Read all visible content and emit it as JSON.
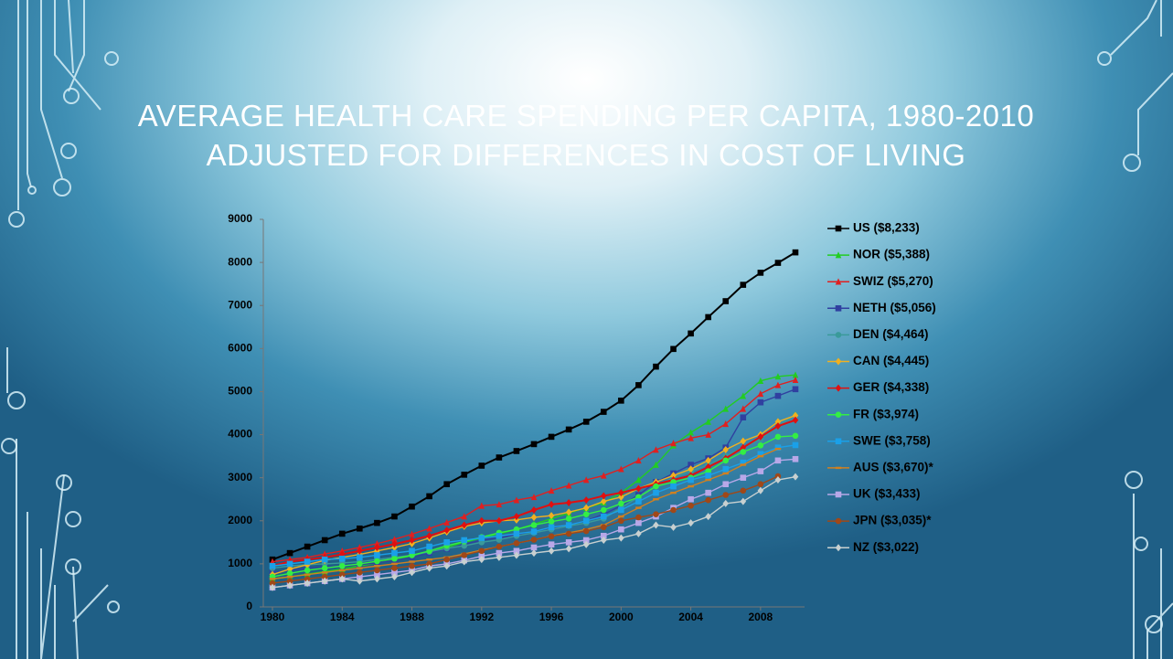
{
  "chart_data": {
    "type": "line",
    "title": "AVERAGE HEALTH CARE SPENDING PER CAPITA, 1980-2010",
    "subtitle": "ADJUSTED FOR DIFFERENCES IN COST OF LIVING",
    "x": [
      1980,
      1981,
      1982,
      1983,
      1984,
      1985,
      1986,
      1987,
      1988,
      1989,
      1990,
      1991,
      1992,
      1993,
      1994,
      1995,
      1996,
      1997,
      1998,
      1999,
      2000,
      2001,
      2002,
      2003,
      2004,
      2005,
      2006,
      2007,
      2008,
      2009,
      2010
    ],
    "xlim": [
      1980,
      2010
    ],
    "xticks": [
      1980,
      1984,
      1988,
      1992,
      1996,
      2000,
      2004,
      2008
    ],
    "ylim": [
      0,
      9000
    ],
    "yticks": [
      0,
      1000,
      2000,
      3000,
      4000,
      5000,
      6000,
      7000,
      8000,
      9000
    ],
    "legend": "right",
    "series": [
      {
        "name": "US ($8,233)",
        "color": "#000000",
        "marker": "square",
        "values": [
          1100,
          1250,
          1400,
          1550,
          1700,
          1820,
          1950,
          2100,
          2330,
          2570,
          2850,
          3070,
          3280,
          3470,
          3620,
          3780,
          3950,
          4120,
          4300,
          4530,
          4790,
          5150,
          5580,
          5990,
          6350,
          6730,
          7100,
          7480,
          7760,
          7990,
          8233
        ]
      },
      {
        "name": "NOR ($5,388)",
        "color": "#22cc22",
        "marker": "triangle",
        "values": [
          650,
          700,
          760,
          820,
          880,
          950,
          1020,
          1090,
          1180,
          1300,
          1380,
          1500,
          1600,
          1700,
          1800,
          1920,
          2050,
          2180,
          2300,
          2420,
          2650,
          2950,
          3300,
          3750,
          4050,
          4300,
          4600,
          4900,
          5250,
          5350,
          5388
        ]
      },
      {
        "name": "SWIZ ($5,270)",
        "color": "#e02020",
        "marker": "triangle",
        "values": [
          1050,
          1100,
          1150,
          1230,
          1300,
          1380,
          1470,
          1570,
          1690,
          1820,
          1960,
          2100,
          2350,
          2380,
          2480,
          2550,
          2700,
          2820,
          2950,
          3050,
          3200,
          3400,
          3650,
          3800,
          3920,
          4000,
          4250,
          4600,
          4950,
          5150,
          5270
        ]
      },
      {
        "name": "NETH ($5,056)",
        "color": "#3040a0",
        "marker": "square",
        "values": [
          800,
          850,
          900,
          930,
          950,
          980,
          1020,
          1080,
          1150,
          1250,
          1350,
          1450,
          1550,
          1600,
          1680,
          1760,
          1830,
          1900,
          2000,
          2150,
          2350,
          2600,
          2900,
          3100,
          3300,
          3450,
          3700,
          4400,
          4750,
          4900,
          5056
        ]
      },
      {
        "name": "DEN ($4,464)",
        "color": "#3a9a9a",
        "marker": "circle",
        "values": [
          900,
          950,
          980,
          1000,
          1020,
          1050,
          1100,
          1150,
          1200,
          1280,
          1360,
          1420,
          1500,
          1560,
          1650,
          1720,
          1800,
          1880,
          1950,
          2050,
          2300,
          2550,
          2800,
          3000,
          3150,
          3300,
          3500,
          3700,
          3900,
          4200,
          4464
        ]
      },
      {
        "name": "CAN ($4,445)",
        "color": "#f0b020",
        "marker": "diamond",
        "values": [
          750,
          880,
          980,
          1080,
          1150,
          1220,
          1300,
          1380,
          1470,
          1600,
          1740,
          1870,
          1950,
          2000,
          2020,
          2080,
          2120,
          2200,
          2300,
          2450,
          2550,
          2750,
          2900,
          3050,
          3200,
          3400,
          3650,
          3850,
          4000,
          4300,
          4445
        ]
      },
      {
        "name": "GER ($4,338)",
        "color": "#e01010",
        "marker": "diamond",
        "values": [
          950,
          1050,
          1100,
          1150,
          1220,
          1300,
          1380,
          1460,
          1550,
          1650,
          1780,
          1900,
          2000,
          2000,
          2100,
          2250,
          2380,
          2420,
          2480,
          2580,
          2650,
          2750,
          2850,
          2950,
          3050,
          3250,
          3450,
          3700,
          3950,
          4200,
          4338
        ]
      },
      {
        "name": "FR ($3,974)",
        "color": "#33ee44",
        "marker": "circle",
        "values": [
          700,
          780,
          850,
          900,
          950,
          1000,
          1060,
          1120,
          1200,
          1300,
          1420,
          1520,
          1620,
          1720,
          1800,
          1900,
          1980,
          2050,
          2150,
          2250,
          2400,
          2550,
          2800,
          2900,
          3000,
          3150,
          3400,
          3600,
          3750,
          3950,
          3974
        ]
      },
      {
        "name": "SWE ($3,758)",
        "color": "#1aa0e8",
        "marker": "square",
        "values": [
          950,
          1000,
          1050,
          1100,
          1120,
          1150,
          1200,
          1250,
          1300,
          1400,
          1500,
          1550,
          1600,
          1650,
          1700,
          1750,
          1850,
          1900,
          2000,
          2100,
          2250,
          2450,
          2650,
          2800,
          2950,
          3050,
          3200,
          3350,
          3550,
          3700,
          3758
        ]
      },
      {
        "name": "AUS ($3,670)*",
        "color": "#d08020",
        "marker": "dash",
        "values": [
          650,
          700,
          750,
          800,
          850,
          900,
          950,
          1000,
          1050,
          1100,
          1150,
          1230,
          1320,
          1400,
          1480,
          1560,
          1650,
          1720,
          1800,
          1900,
          2100,
          2300,
          2500,
          2650,
          2800,
          2950,
          3100,
          3300,
          3500,
          3670,
          null
        ]
      },
      {
        "name": "UK ($3,433)",
        "color": "#b8a8e8",
        "marker": "square",
        "values": [
          450,
          500,
          550,
          600,
          650,
          700,
          750,
          800,
          850,
          950,
          1000,
          1080,
          1180,
          1250,
          1300,
          1380,
          1450,
          1500,
          1550,
          1650,
          1800,
          1950,
          2100,
          2300,
          2500,
          2650,
          2850,
          3000,
          3150,
          3400,
          3433
        ]
      },
      {
        "name": "JPN ($3,035)*",
        "color": "#a04818",
        "marker": "circle",
        "values": [
          550,
          600,
          650,
          700,
          750,
          800,
          850,
          900,
          950,
          1000,
          1100,
          1200,
          1300,
          1400,
          1480,
          1560,
          1640,
          1700,
          1760,
          1850,
          2000,
          2080,
          2150,
          2250,
          2350,
          2480,
          2600,
          2700,
          2850,
          3035,
          null
        ]
      },
      {
        "name": "NZ ($3,022)",
        "color": "#c8d0d0",
        "marker": "diamond",
        "values": [
          450,
          500,
          550,
          600,
          650,
          600,
          650,
          700,
          800,
          900,
          950,
          1050,
          1100,
          1150,
          1200,
          1250,
          1300,
          1350,
          1450,
          1550,
          1600,
          1700,
          1900,
          1850,
          1950,
          2100,
          2400,
          2450,
          2700,
          2950,
          3022
        ]
      }
    ]
  }
}
